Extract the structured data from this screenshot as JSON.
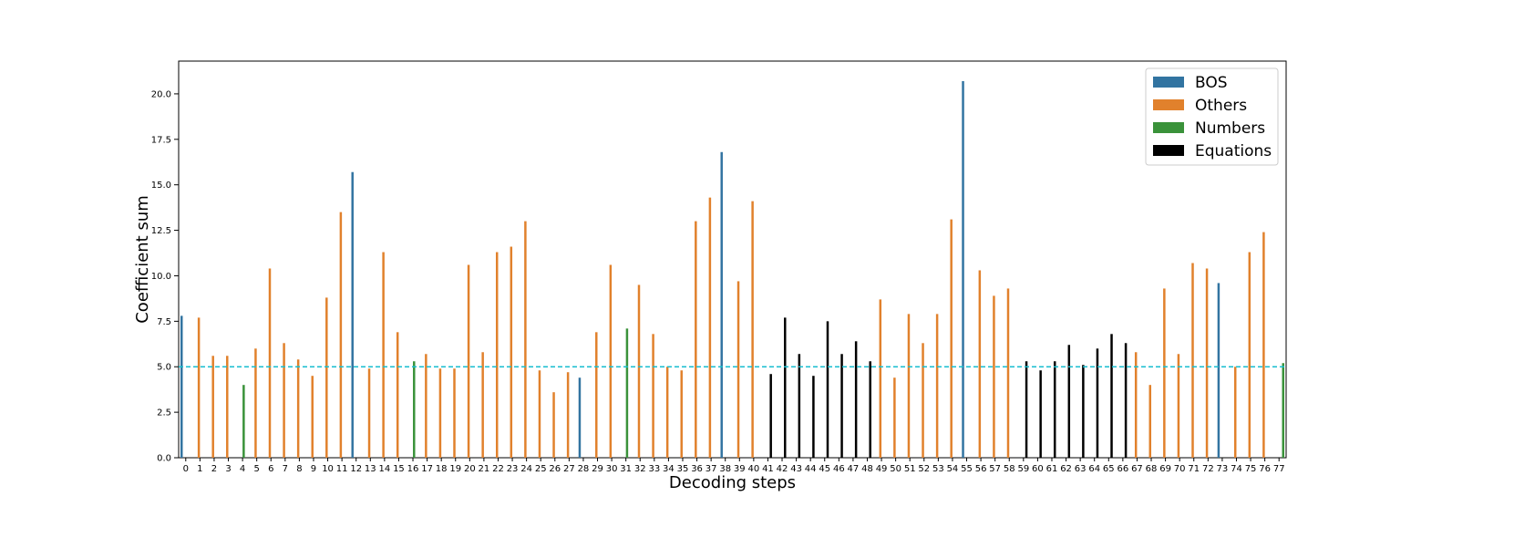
{
  "chart_data": {
    "type": "bar",
    "title": "",
    "xlabel": "Decoding steps",
    "ylabel": "Coefficient sum",
    "ylim": [
      0,
      21.8
    ],
    "yticks": [
      0.0,
      2.5,
      5.0,
      7.5,
      10.0,
      12.5,
      15.0,
      17.5,
      20.0
    ],
    "ytick_labels": [
      "0.0",
      "2.5",
      "5.0",
      "7.5",
      "10.0",
      "12.5",
      "15.0",
      "17.5",
      "20.0"
    ],
    "categories": [
      "0",
      "1",
      "2",
      "3",
      "4",
      "5",
      "6",
      "7",
      "8",
      "9",
      "10",
      "11",
      "12",
      "13",
      "14",
      "15",
      "16",
      "17",
      "18",
      "19",
      "20",
      "21",
      "22",
      "23",
      "24",
      "25",
      "26",
      "27",
      "28",
      "29",
      "30",
      "31",
      "32",
      "33",
      "34",
      "35",
      "36",
      "37",
      "38",
      "39",
      "40",
      "41",
      "42",
      "43",
      "44",
      "45",
      "46",
      "47",
      "48",
      "49",
      "50",
      "51",
      "52",
      "53",
      "54",
      "55",
      "56",
      "57",
      "58",
      "59",
      "60",
      "61",
      "62",
      "63",
      "64",
      "65",
      "66",
      "67",
      "68",
      "69",
      "70",
      "71",
      "72",
      "73",
      "74",
      "75",
      "76",
      "77"
    ],
    "values": [
      7.8,
      7.7,
      5.6,
      5.6,
      4.0,
      6.0,
      10.4,
      6.3,
      5.4,
      4.5,
      8.8,
      13.5,
      15.7,
      4.9,
      11.3,
      6.9,
      5.3,
      5.7,
      4.9,
      4.9,
      10.6,
      5.8,
      11.3,
      11.6,
      13.0,
      4.8,
      3.6,
      4.7,
      4.4,
      6.9,
      10.6,
      7.1,
      9.5,
      6.8,
      5.0,
      4.8,
      13.0,
      14.3,
      16.8,
      9.7,
      14.1,
      4.6,
      7.7,
      5.7,
      4.5,
      7.5,
      5.7,
      6.4,
      5.3,
      8.7,
      4.4,
      7.9,
      6.3,
      7.9,
      13.1,
      20.7,
      10.3,
      8.9,
      9.3,
      5.3,
      4.8,
      5.3,
      6.2,
      5.1,
      6.0,
      6.8,
      6.3,
      5.8,
      4.0,
      9.3,
      5.7,
      10.7,
      10.4,
      9.6,
      5.0,
      11.3,
      12.4,
      5.2
    ],
    "groups": [
      "BOS",
      "Others",
      "Others",
      "Others",
      "Numbers",
      "Others",
      "Others",
      "Others",
      "Others",
      "Others",
      "Others",
      "Others",
      "BOS",
      "Others",
      "Others",
      "Others",
      "Numbers",
      "Others",
      "Others",
      "Others",
      "Others",
      "Others",
      "Others",
      "Others",
      "Others",
      "Others",
      "Others",
      "Others",
      "BOS",
      "Others",
      "Others",
      "Numbers",
      "Others",
      "Others",
      "Others",
      "Others",
      "Others",
      "Others",
      "BOS",
      "Others",
      "Others",
      "Equations",
      "Equations",
      "Equations",
      "Equations",
      "Equations",
      "Equations",
      "Equations",
      "Equations",
      "Others",
      "Others",
      "Others",
      "Others",
      "Others",
      "Others",
      "BOS",
      "Others",
      "Others",
      "Others",
      "Equations",
      "Equations",
      "Equations",
      "Equations",
      "Equations",
      "Equations",
      "Equations",
      "Equations",
      "Others",
      "Others",
      "Others",
      "Others",
      "Others",
      "Others",
      "BOS",
      "Others",
      "Others",
      "Others",
      "Numbers"
    ],
    "legend": {
      "placement": "top-right",
      "entries": [
        {
          "name": "BOS",
          "color": "#3274a1"
        },
        {
          "name": "Others",
          "color": "#e1812c"
        },
        {
          "name": "Numbers",
          "color": "#3a923a"
        },
        {
          "name": "Equations",
          "color": "#000000"
        }
      ]
    },
    "reference_line": {
      "y": 5.0,
      "style": "dashed",
      "color": "#17becf"
    },
    "grid": false
  }
}
